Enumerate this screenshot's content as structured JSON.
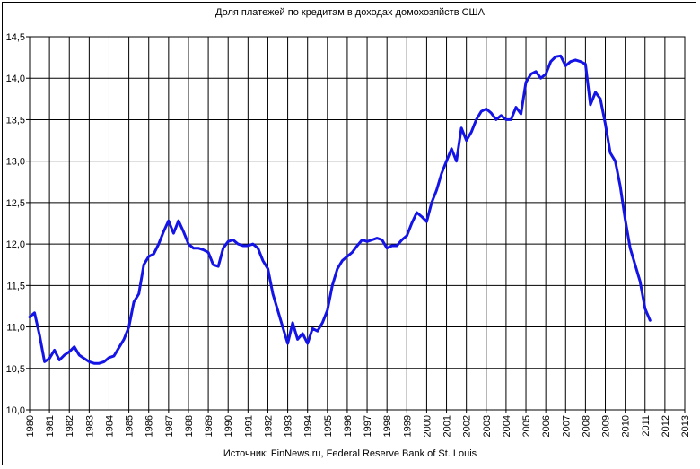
{
  "chart_data": {
    "type": "line",
    "title": "Доля платежей по кредитам в доходах домохозяйств США",
    "source": "Источник: FinNews.ru, Federal Reserve Bank of St. Louis",
    "xlabel": "",
    "ylabel": "",
    "xlim": [
      1980,
      2013
    ],
    "ylim": [
      10.0,
      14.5
    ],
    "grid": true,
    "line_color": "#1414e6",
    "y_ticks": [
      "14,5",
      "14,0",
      "13,5",
      "13,0",
      "12,5",
      "12,0",
      "11,5",
      "11,0",
      "10,5",
      "10,0"
    ],
    "x_ticks": [
      "1980",
      "1981",
      "1982",
      "1983",
      "1984",
      "1985",
      "1986",
      "1987",
      "1988",
      "1989",
      "1990",
      "1991",
      "1992",
      "1993",
      "1994",
      "1995",
      "1996",
      "1997",
      "1998",
      "1999",
      "2000",
      "2001",
      "2002",
      "2003",
      "2004",
      "2005",
      "2006",
      "2007",
      "2008",
      "2009",
      "2010",
      "2011",
      "2012",
      "2013"
    ],
    "series": [
      {
        "x": [
          1980.0,
          1980.25,
          1980.5,
          1980.75,
          1981.0,
          1981.25,
          1981.5,
          1981.75,
          1982.0,
          1982.25,
          1982.5,
          1982.75,
          1983.0,
          1983.25,
          1983.5,
          1983.75,
          1984.0,
          1984.25,
          1984.5,
          1984.75,
          1985.0,
          1985.25,
          1985.5,
          1985.75,
          1986.0,
          1986.25,
          1986.5,
          1986.75,
          1987.0,
          1987.25,
          1987.5,
          1987.75,
          1988.0,
          1988.25,
          1988.5,
          1988.75,
          1989.0,
          1989.25,
          1989.5,
          1989.75,
          1990.0,
          1990.25,
          1990.5,
          1990.75,
          1991.0,
          1991.25,
          1991.5,
          1991.75,
          1992.0,
          1992.25,
          1992.5,
          1992.75,
          1993.0,
          1993.25,
          1993.5,
          1993.75,
          1994.0,
          1994.25,
          1994.5,
          1994.75,
          1995.0,
          1995.25,
          1995.5,
          1995.75,
          1996.0,
          1996.25,
          1996.5,
          1996.75,
          1997.0,
          1997.25,
          1997.5,
          1997.75,
          1998.0,
          1998.25,
          1998.5,
          1998.75,
          1999.0,
          1999.25,
          1999.5,
          1999.75,
          2000.0,
          2000.25,
          2000.5,
          2000.75,
          2001.0,
          2001.25,
          2001.5,
          2001.75,
          2002.0,
          2002.25,
          2002.5,
          2002.75,
          2003.0,
          2003.25,
          2003.5,
          2003.75,
          2004.0,
          2004.25,
          2004.5,
          2004.75,
          2005.0,
          2005.25,
          2005.5,
          2005.75,
          2006.0,
          2006.25,
          2006.5,
          2006.75,
          2007.0,
          2007.25,
          2007.5,
          2007.75,
          2008.0,
          2008.25,
          2008.5,
          2008.75,
          2009.0,
          2009.25,
          2009.5,
          2009.75,
          2010.0,
          2010.25,
          2010.5,
          2010.75,
          2011.0,
          2011.25
        ],
        "y": [
          11.12,
          11.17,
          10.9,
          10.58,
          10.62,
          10.72,
          10.6,
          10.66,
          10.7,
          10.76,
          10.66,
          10.62,
          10.58,
          10.56,
          10.56,
          10.58,
          10.63,
          10.65,
          10.75,
          10.85,
          11.0,
          11.3,
          11.4,
          11.75,
          11.85,
          11.88,
          12.0,
          12.15,
          12.28,
          12.13,
          12.28,
          12.15,
          12.0,
          11.95,
          11.95,
          11.93,
          11.9,
          11.75,
          11.73,
          11.95,
          12.03,
          12.05,
          12.0,
          11.98,
          11.98,
          12.0,
          11.95,
          11.8,
          11.7,
          11.4,
          11.2,
          11.0,
          10.8,
          11.05,
          10.85,
          10.92,
          10.8,
          10.98,
          10.95,
          11.05,
          11.2,
          11.5,
          11.7,
          11.8,
          11.85,
          11.9,
          11.98,
          12.05,
          12.03,
          12.05,
          12.07,
          12.05,
          11.95,
          11.98,
          11.98,
          12.05,
          12.1,
          12.25,
          12.38,
          12.33,
          12.27,
          12.5,
          12.65,
          12.85,
          13.0,
          13.15,
          13.0,
          13.4,
          13.25,
          13.35,
          13.5,
          13.6,
          13.63,
          13.58,
          13.5,
          13.55,
          13.5,
          13.5,
          13.65,
          13.57,
          13.95,
          14.05,
          14.08,
          14.0,
          14.05,
          14.2,
          14.26,
          14.27,
          14.15,
          14.2,
          14.22,
          14.2,
          14.17,
          13.68,
          13.83,
          13.75,
          13.45,
          13.1,
          13.0,
          12.7,
          12.3,
          11.95,
          11.75,
          11.55,
          11.22,
          11.08
        ]
      }
    ]
  }
}
